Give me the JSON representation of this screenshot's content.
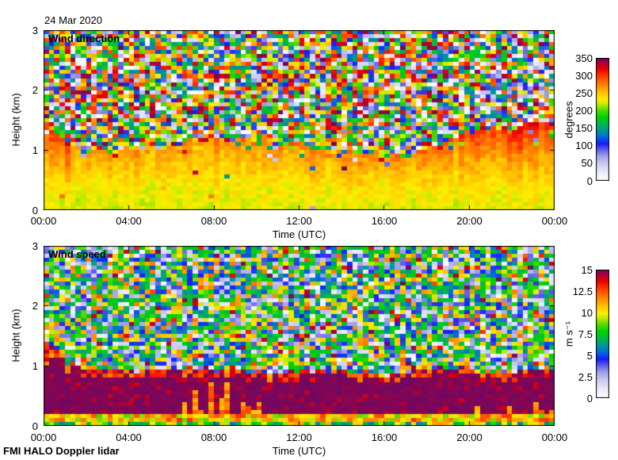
{
  "header": {
    "date_title": "24 Mar 2020"
  },
  "footer": {
    "label": "FMI HALO Doppler lidar"
  },
  "render": {
    "seed": 20200324,
    "background": "#ffffff",
    "axis_color": "#000000"
  },
  "colormap": {
    "stops": [
      [
        0.0,
        "#ffffff"
      ],
      [
        0.07,
        "#e9e9f9"
      ],
      [
        0.14,
        "#c9c9f1"
      ],
      [
        0.2,
        "#9f9fec"
      ],
      [
        0.255,
        "#5a5ae8"
      ],
      [
        0.3,
        "#1a1aff"
      ],
      [
        0.36,
        "#0070d8"
      ],
      [
        0.42,
        "#00a080"
      ],
      [
        0.47,
        "#00b945"
      ],
      [
        0.52,
        "#00d200"
      ],
      [
        0.575,
        "#55dc00"
      ],
      [
        0.62,
        "#bce800"
      ],
      [
        0.66,
        "#ffee00"
      ],
      [
        0.71,
        "#ffc800"
      ],
      [
        0.76,
        "#ff9900"
      ],
      [
        0.815,
        "#ff6400"
      ],
      [
        0.865,
        "#ff2d00"
      ],
      [
        0.915,
        "#e60000"
      ],
      [
        0.955,
        "#b4002d"
      ],
      [
        1.0,
        "#6e0864"
      ]
    ]
  },
  "chart_data": [
    {
      "type": "heatmap",
      "title": "Wind direction",
      "xlabel": "Time (UTC)",
      "ylabel": "Height (km)",
      "x_ticks": [
        "00:00",
        "04:00",
        "08:00",
        "12:00",
        "16:00",
        "20:00",
        "00:00"
      ],
      "x_tick_hours": [
        0,
        4,
        8,
        12,
        16,
        20,
        24
      ],
      "y_ticks": [
        "0",
        "1",
        "2",
        "3"
      ],
      "y_tick_km": [
        0,
        1,
        2,
        3
      ],
      "x_range_hours": [
        0,
        24
      ],
      "y_range_km": [
        0,
        3
      ],
      "grid": {
        "cols": 96,
        "rows": 45
      },
      "colorbar": {
        "label": "degrees",
        "min": 0,
        "max": 350,
        "ticks": [
          "0",
          "50",
          "100",
          "150",
          "200",
          "250",
          "300",
          "350"
        ],
        "tick_values": [
          0,
          50,
          100,
          150,
          200,
          250,
          300,
          350
        ]
      },
      "structure": {
        "summary": "Coherent flow of ~210-280 degrees (yellow to orange) below the boundary-layer top; uncorrelated random directions (full-spectrum noise) above it; direction veers toward ~300 degrees (red) near the layer top after 18:00 and around 00:00-01:00",
        "boundary_top_km": [
          [
            0,
            1.45
          ],
          [
            0.6,
            1.3
          ],
          [
            1,
            1.12
          ],
          [
            2,
            1.0
          ],
          [
            3,
            0.98
          ],
          [
            4,
            1.0
          ],
          [
            5,
            1.02
          ],
          [
            6,
            1.05
          ],
          [
            7,
            1.1
          ],
          [
            8,
            1.15
          ],
          [
            9,
            1.2
          ],
          [
            10,
            1.1
          ],
          [
            11,
            1.05
          ],
          [
            12,
            1.05
          ],
          [
            13,
            1.0
          ],
          [
            14,
            1.0
          ],
          [
            15,
            0.96
          ],
          [
            16,
            0.92
          ],
          [
            17,
            0.9
          ],
          [
            18,
            1.05
          ],
          [
            19,
            1.2
          ],
          [
            20,
            1.3
          ],
          [
            21,
            1.38
          ],
          [
            22,
            1.32
          ],
          [
            23,
            1.45
          ],
          [
            24,
            1.42
          ]
        ],
        "surface_direction_deg": 226,
        "layer_top_direction_deg": 272,
        "evening_extra_deg": 40,
        "early_extra_deg": 28
      }
    },
    {
      "type": "heatmap",
      "title": "Wind speed",
      "xlabel": "Time (UTC)",
      "ylabel": "Height (km)",
      "x_ticks": [
        "00:00",
        "04:00",
        "08:00",
        "12:00",
        "16:00",
        "20:00",
        "00:00"
      ],
      "x_tick_hours": [
        0,
        4,
        8,
        12,
        16,
        20,
        24
      ],
      "y_ticks": [
        "0",
        "1",
        "2",
        "3"
      ],
      "y_tick_km": [
        0,
        1,
        2,
        3
      ],
      "x_range_hours": [
        0,
        24
      ],
      "y_range_km": [
        0,
        3
      ],
      "grid": {
        "cols": 96,
        "rows": 45
      },
      "colorbar": {
        "label": "m s⁻¹",
        "min": 0,
        "max": 15,
        "ticks": [
          "0",
          "2.5",
          "5",
          "7.5",
          "10",
          "12.5",
          "15"
        ],
        "tick_values": [
          0,
          2.5,
          5,
          7.5,
          10,
          12.5,
          15
        ]
      },
      "structure": {
        "summary": "Low-level jet faster than ~14 m/s (dark purple) below ~0.9-1.4 km with red 10-14 m/s fringes at its top, red 10-13 m/s columns punching upward between 06:30 and 10:00, a 4-12 m/s near-surface layer, and uncorrelated noisy speeds above the jet",
        "jet_top_km": [
          [
            0,
            1.42
          ],
          [
            0.6,
            1.28
          ],
          [
            1,
            1.05
          ],
          [
            2,
            0.95
          ],
          [
            4,
            0.9
          ],
          [
            6,
            0.93
          ],
          [
            7,
            0.95
          ],
          [
            8,
            0.9
          ],
          [
            9,
            0.95
          ],
          [
            10,
            0.88
          ],
          [
            11,
            0.85
          ],
          [
            12,
            0.92
          ],
          [
            14,
            0.9
          ],
          [
            16,
            0.85
          ],
          [
            18,
            0.9
          ],
          [
            19,
            0.97
          ],
          [
            20,
            0.93
          ],
          [
            22,
            0.9
          ],
          [
            23,
            0.96
          ],
          [
            24,
            0.9
          ]
        ],
        "jet_core_ms": [
          14.7,
          15
        ],
        "fringe_ms": [
          11.5,
          14
        ],
        "intrusion_hours": [
          6.3,
          10.2
        ],
        "intrusion_ms": [
          10.5,
          13
        ],
        "surface_ms": [
          5.5,
          12
        ]
      }
    }
  ]
}
